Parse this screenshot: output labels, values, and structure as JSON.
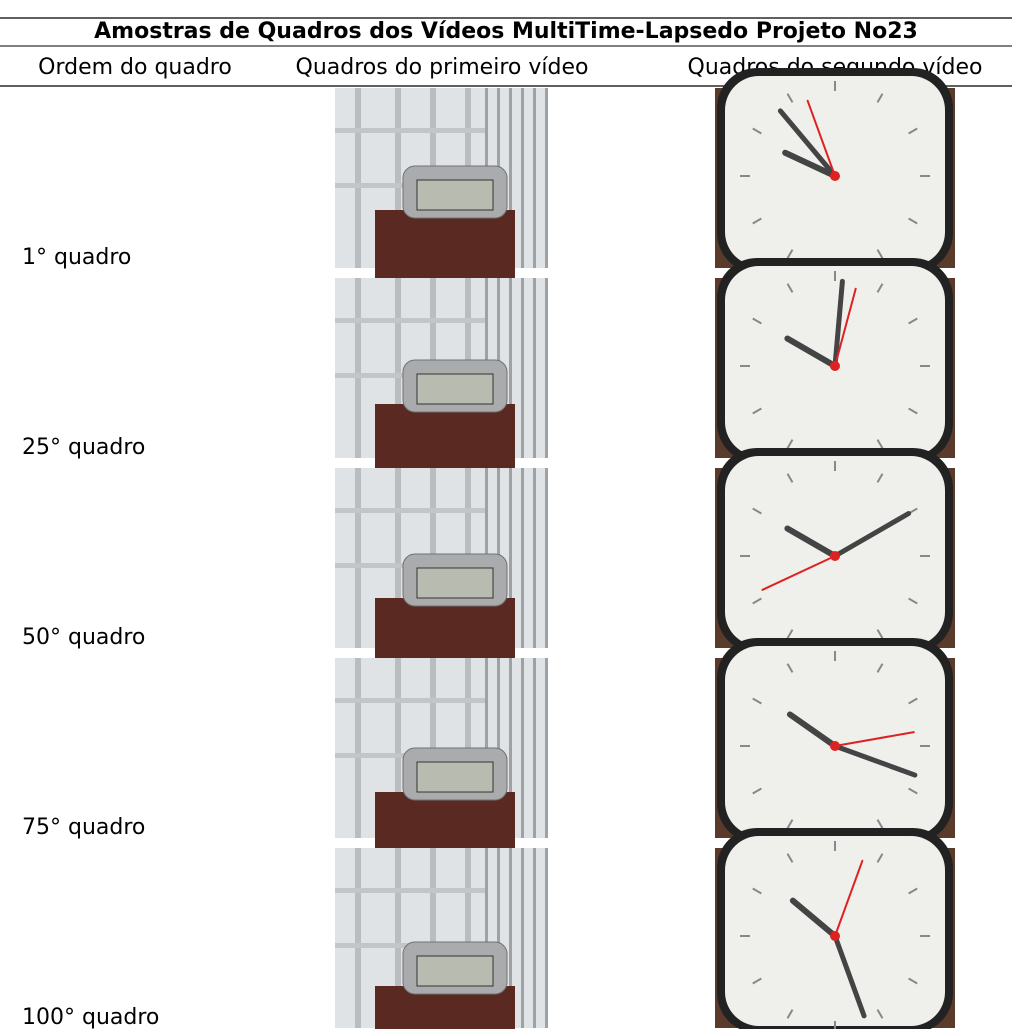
{
  "header": {
    "title": "Amostras de Quadros dos Vídeos MultiTime-Lapsedo Projeto No23"
  },
  "table": {
    "columns": [
      "Ordem do quadro",
      "Quadros do primeiro vídeo",
      "Quadros do segundo vídeo"
    ],
    "rows": [
      [
        "1° quadro"
      ],
      [
        "25° quadro"
      ],
      [
        "50° quadro"
      ],
      [
        "75° quadro"
      ],
      [
        "100° quadro"
      ]
    ]
  }
}
